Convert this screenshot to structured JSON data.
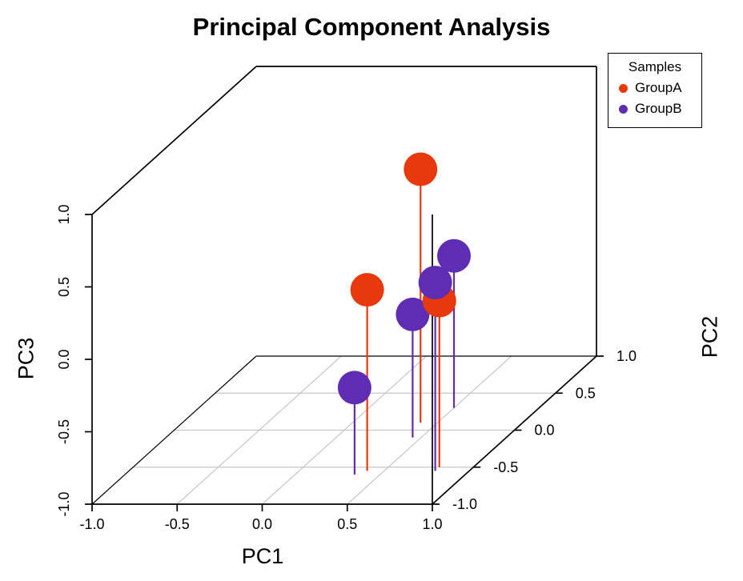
{
  "title": "Principal Component Analysis",
  "legend": {
    "title": "Samples",
    "items": [
      {
        "label": "GroupA",
        "color": "#E8380D"
      },
      {
        "label": "GroupB",
        "color": "#5F2DB3"
      }
    ]
  },
  "axes": {
    "x": {
      "label": "PC1",
      "tick_labels": [
        "-1.0",
        "-0.5",
        "0.0",
        "0.5",
        "1.0"
      ]
    },
    "y": {
      "label": "PC2",
      "tick_labels": [
        "-1.0",
        "-0.5",
        "0.0",
        "0.5",
        "1.0"
      ]
    },
    "z": {
      "label": "PC3",
      "tick_labels": [
        "-1.0",
        "-0.5",
        "0.0",
        "0.5",
        "1.0"
      ]
    }
  },
  "chart_data": {
    "type": "scatter",
    "subtype": "3d-scatter-with-drop-lines",
    "title": "Principal Component Analysis",
    "xlabel": "PC1",
    "ylabel": "PC2",
    "zlabel": "PC3",
    "xlim": [
      -1,
      1
    ],
    "ylim": [
      -1,
      1
    ],
    "zlim": [
      -1,
      1
    ],
    "xticks": [
      -1,
      -0.5,
      0,
      0.5,
      1
    ],
    "yticks": [
      -1,
      -0.5,
      0,
      0.5,
      1
    ],
    "zticks": [
      -1,
      -0.5,
      0,
      0.5,
      1
    ],
    "grid": true,
    "legend_title": "Samples",
    "legend_position": "top-right",
    "point_format": [
      "PC1",
      "PC2",
      "PC3"
    ],
    "series": [
      {
        "name": "GroupA",
        "color": "#E8380D",
        "points": [
          [
            0.4,
            0.1,
            0.75
          ],
          [
            0.4,
            -0.55,
            0.25
          ],
          [
            0.8,
            -0.5,
            0.15
          ]
        ]
      },
      {
        "name": "GroupB",
        "color": "#5F2DB3",
        "points": [
          [
            0.5,
            0.3,
            0.05
          ],
          [
            0.8,
            -0.55,
            0.3
          ],
          [
            0.45,
            -0.1,
            -0.15
          ],
          [
            0.35,
            -0.6,
            -0.4
          ]
        ]
      }
    ]
  }
}
